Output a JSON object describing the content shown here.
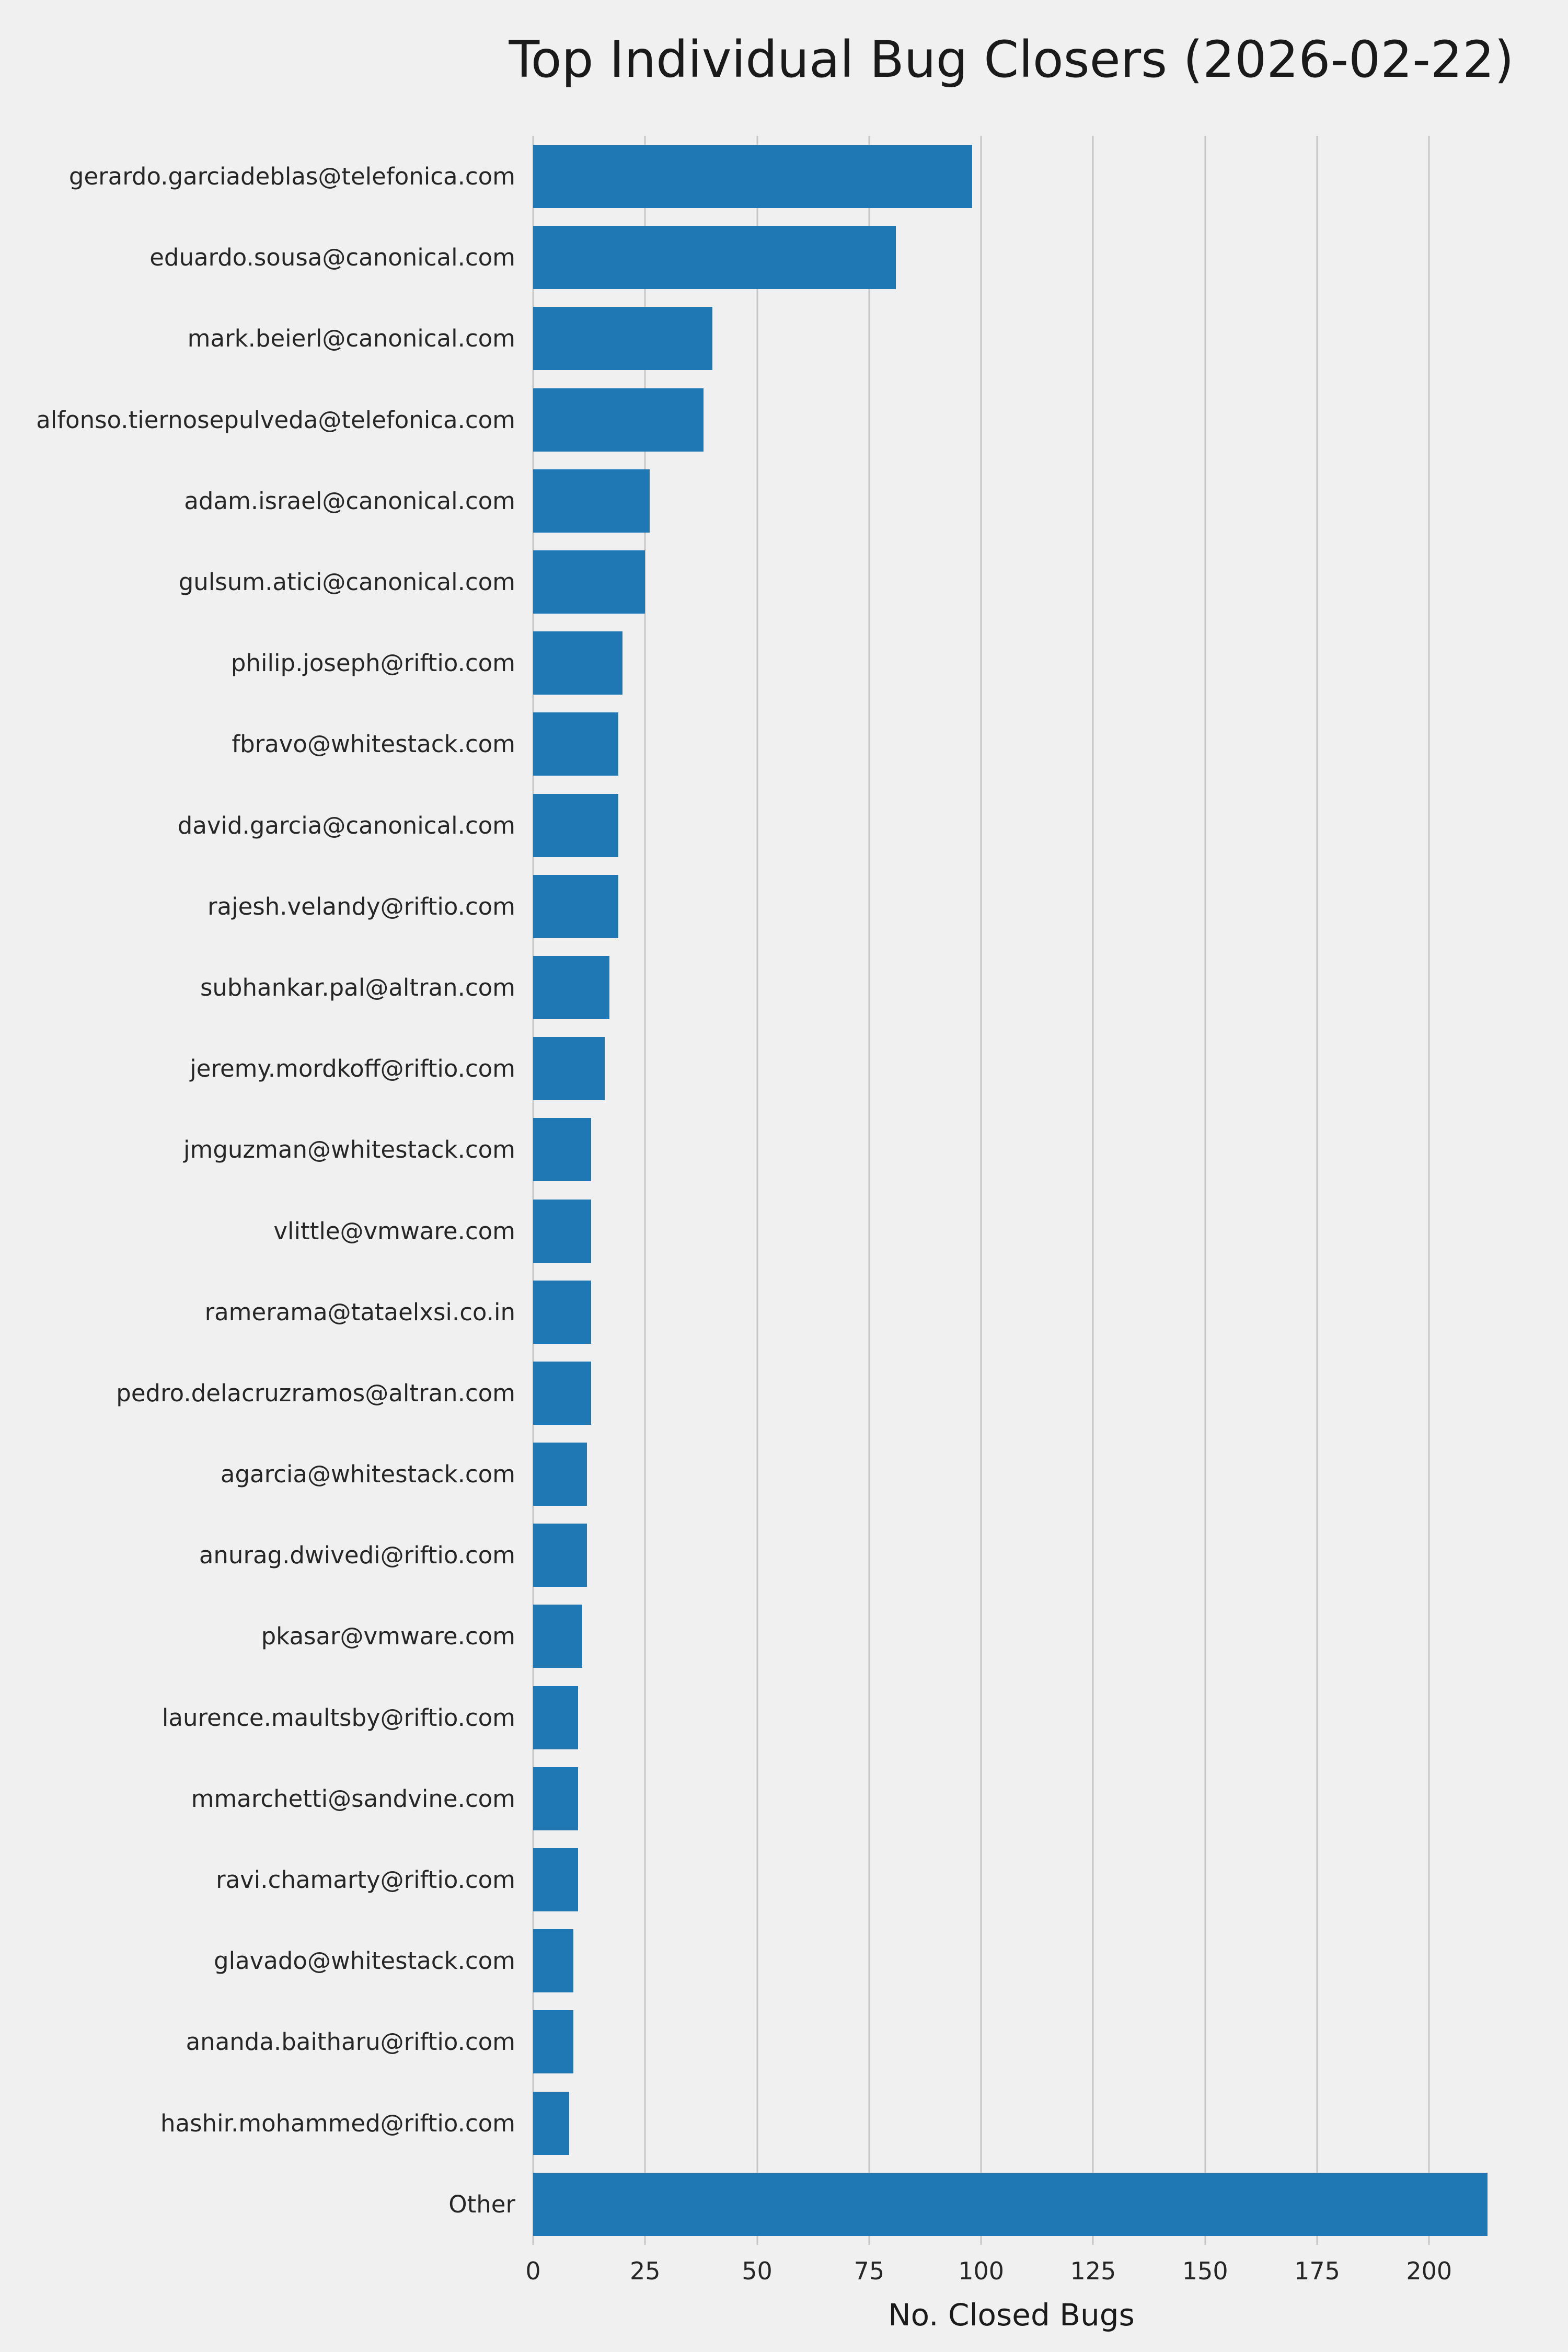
{
  "title": "Top Individual Bug Closers (2026-02-22)",
  "chart_data": {
    "type": "bar",
    "orientation": "horizontal",
    "title": "Top Individual Bug Closers (2026-02-22)",
    "xlabel": "No. Closed Bugs",
    "ylabel": "",
    "xlim": [
      0,
      213.5
    ],
    "xticks": [
      0,
      25,
      50,
      75,
      100,
      125,
      150,
      175,
      200
    ],
    "grid": true,
    "legend": false,
    "bar_color": "#1f77b4",
    "background_color": "#f0f0f0",
    "gridline_color": "#c6c6c6",
    "categories": [
      "gerardo.garciadeblas@telefonica.com",
      "eduardo.sousa@canonical.com",
      "mark.beierl@canonical.com",
      "alfonso.tiernosepulveda@telefonica.com",
      "adam.israel@canonical.com",
      "gulsum.atici@canonical.com",
      "philip.joseph@riftio.com",
      "fbravo@whitestack.com",
      "david.garcia@canonical.com",
      "rajesh.velandy@riftio.com",
      "subhankar.pal@altran.com",
      "jeremy.mordkoff@riftio.com",
      "jmguzman@whitestack.com",
      "vlittle@vmware.com",
      "ramerama@tataelxsi.co.in",
      "pedro.delacruzramos@altran.com",
      "agarcia@whitestack.com",
      "anurag.dwivedi@riftio.com",
      "pkasar@vmware.com",
      "laurence.maultsby@riftio.com",
      "mmarchetti@sandvine.com",
      "ravi.chamarty@riftio.com",
      "glavado@whitestack.com",
      "ananda.baitharu@riftio.com",
      "hashir.mohammed@riftio.com",
      "Other"
    ],
    "values": [
      98,
      81,
      40,
      38,
      26,
      25,
      20,
      19,
      19,
      19,
      17,
      16,
      13,
      13,
      13,
      13,
      12,
      12,
      11,
      10,
      10,
      10,
      9,
      9,
      8,
      213
    ]
  }
}
